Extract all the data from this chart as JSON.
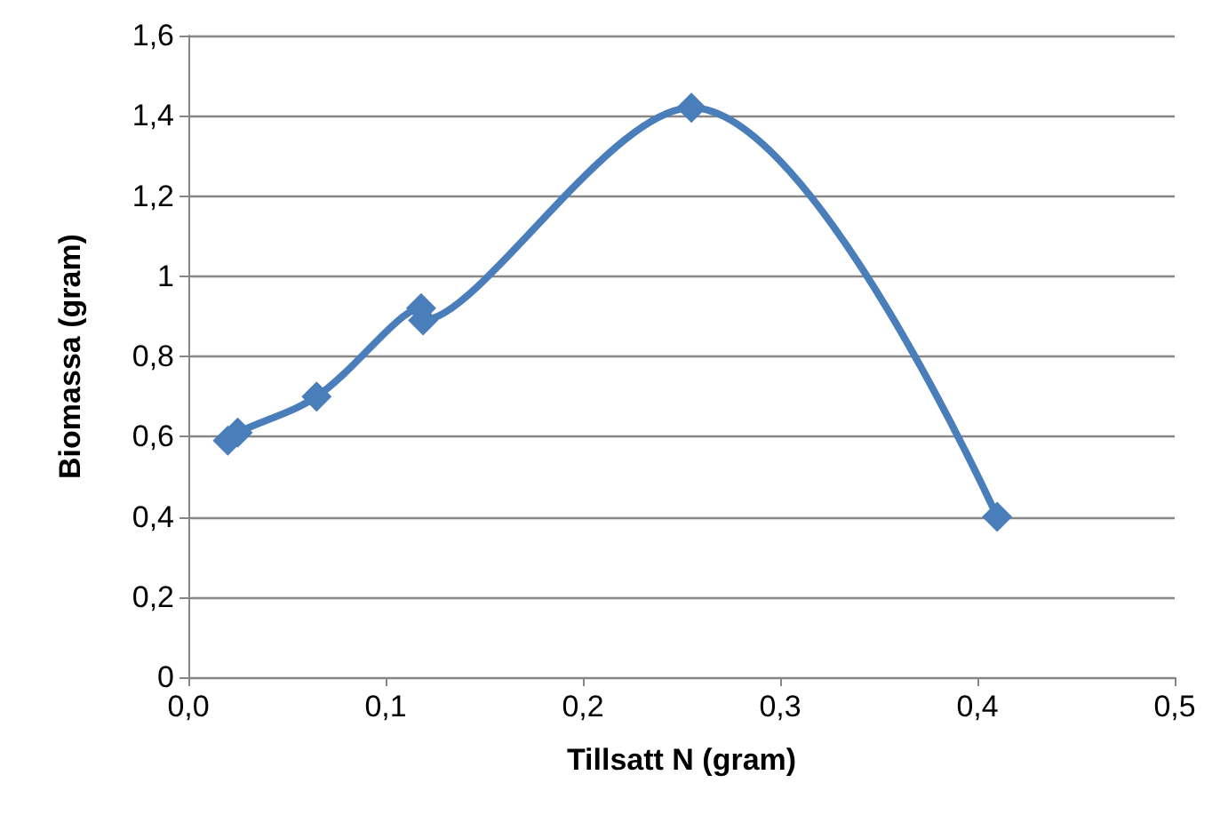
{
  "chart_data": {
    "type": "line",
    "xlabel": "Tillsatt N (gram)",
    "ylabel": "Biomassa (gram)",
    "series": [
      {
        "color": "#4a7ebb",
        "x": [
          0.02,
          0.025,
          0.065,
          0.118,
          0.119,
          0.255,
          0.41
        ],
        "values": [
          0.59,
          0.61,
          0.7,
          0.92,
          0.89,
          1.42,
          0.4
        ]
      }
    ],
    "xlim": [
      0,
      0.5
    ],
    "xticks": [
      {
        "value": 0,
        "label": "0,0"
      },
      {
        "value": 0.1,
        "label": "0,1"
      },
      {
        "value": 0.2,
        "label": "0,2"
      },
      {
        "value": 0.3,
        "label": "0,3"
      },
      {
        "value": 0.4,
        "label": "0,4"
      },
      {
        "value": 0.5,
        "label": "0,5"
      }
    ],
    "ylim": [
      0,
      1.6
    ],
    "yticks": [
      0,
      {
        "value": 0.2,
        "label": "0,2"
      },
      {
        "value": 0.4,
        "label": "0,4"
      },
      {
        "value": 0.6,
        "label": "0,6"
      },
      {
        "value": 0.8,
        "label": "0,8"
      },
      1,
      {
        "value": 1.2,
        "label": "1,2"
      },
      {
        "value": 1.4,
        "label": "1,4"
      },
      {
        "value": 1.6,
        "label": "1,6"
      }
    ],
    "grid": "y",
    "marker": "diamond",
    "line_style": "solid"
  }
}
